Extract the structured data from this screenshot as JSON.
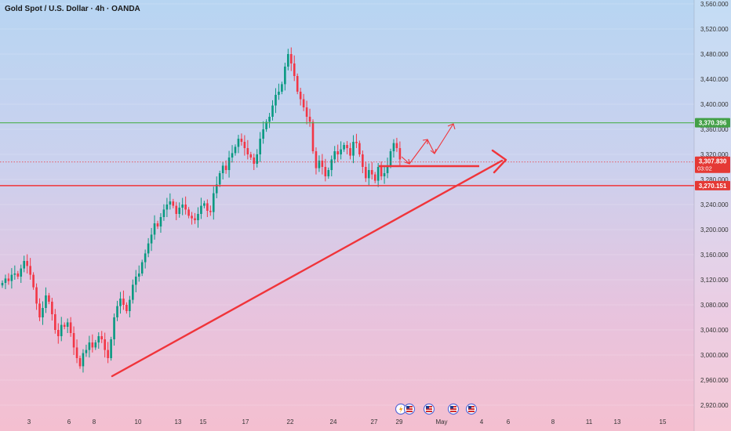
{
  "header": {
    "title": "Gold Spot / U.S. Dollar · 4h · OANDA"
  },
  "price_axis": {
    "ticks": [
      "3,560.000",
      "3,520.000",
      "3,480.000",
      "3,440.000",
      "3,400.000",
      "3,360.000",
      "3,320.000",
      "3,280.000",
      "3,240.000",
      "3,200.000",
      "3,160.000",
      "3,120.000",
      "3,080.000",
      "3,040.000",
      "3,000.000",
      "2,960.000",
      "2,920.000"
    ]
  },
  "time_axis": {
    "labels": [
      "3",
      "6",
      "8",
      "10",
      "13",
      "15",
      "17",
      "22",
      "24",
      "27",
      "29",
      "May",
      "4",
      "6",
      "8",
      "11",
      "13",
      "15"
    ]
  },
  "price_tags": {
    "resistance": {
      "value": "3,370.396",
      "color": "#43a047"
    },
    "current": {
      "value": "3,307.830",
      "countdown": "03:02",
      "color": "#e53935"
    },
    "support": {
      "value": "3,270.151",
      "color": "#e53935"
    }
  },
  "colors": {
    "up": "#089981",
    "down": "#f23645",
    "resistance_line": "#4caf50",
    "support_line": "#f0343a",
    "trend": "#f0343a"
  },
  "events": [
    {
      "icon": "lightning-icon"
    },
    {
      "icon": "us-flag-icon"
    },
    {
      "icon": "us-flag-icon"
    },
    {
      "icon": "us-flag-icon"
    },
    {
      "icon": "us-flag-icon"
    }
  ],
  "chart_data": {
    "type": "candlestick",
    "title": "Gold Spot / U.S. Dollar · 4h · OANDA",
    "ylim": [
      2920,
      3560
    ],
    "horizontal_levels": [
      3370.396,
      3270.151
    ],
    "current_price": 3307.83,
    "closes": [
      3115,
      3122,
      3118,
      3128,
      3130,
      3125,
      3138,
      3150,
      3142,
      3128,
      3108,
      3082,
      3060,
      3075,
      3095,
      3085,
      3065,
      3040,
      3030,
      3048,
      3045,
      3052,
      3035,
      3012,
      2995,
      2982,
      3003,
      3008,
      3020,
      3012,
      3020,
      3030,
      3025,
      3008,
      2995,
      3025,
      3060,
      3078,
      3090,
      3080,
      3070,
      3088,
      3112,
      3125,
      3130,
      3148,
      3162,
      3178,
      3192,
      3210,
      3205,
      3220,
      3232,
      3240,
      3245,
      3238,
      3225,
      3235,
      3240,
      3232,
      3222,
      3218,
      3215,
      3225,
      3238,
      3242,
      3230,
      3228,
      3258,
      3272,
      3290,
      3302,
      3295,
      3315,
      3322,
      3332,
      3345,
      3340,
      3330,
      3320,
      3315,
      3305,
      3320,
      3345,
      3360,
      3372,
      3380,
      3398,
      3415,
      3420,
      3432,
      3460,
      3480,
      3465,
      3445,
      3420,
      3408,
      3395,
      3380,
      3372,
      3325,
      3298,
      3310,
      3300,
      3285,
      3295,
      3312,
      3325,
      3320,
      3328,
      3335,
      3330,
      3318,
      3340,
      3338,
      3320,
      3300,
      3282,
      3295,
      3288,
      3278,
      3300,
      3285,
      3290,
      3302,
      3325,
      3338,
      3330,
      3312
    ]
  }
}
